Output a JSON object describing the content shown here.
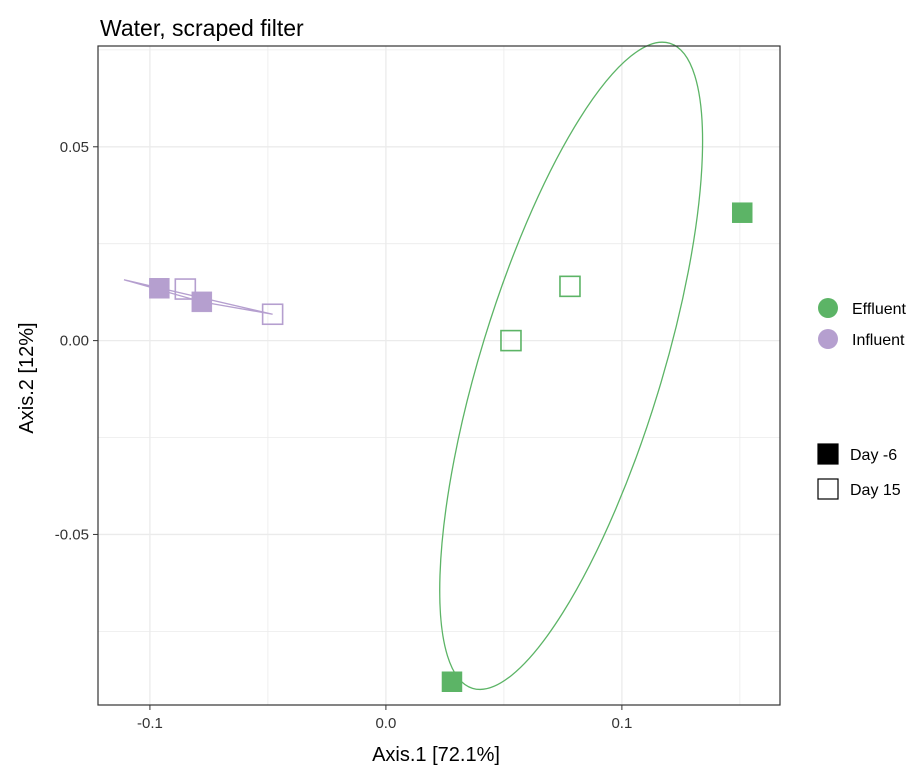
{
  "chart_data": {
    "type": "scatter",
    "title": "Water, scraped filter",
    "xlabel": "Axis.1   [72.1%]",
    "ylabel": "Axis.2   [12%]",
    "xlim": [
      -0.122,
      0.167
    ],
    "ylim": [
      -0.094,
      0.076
    ],
    "x_ticks": [
      -0.1,
      0.0,
      0.1
    ],
    "x_tick_labels": [
      "-0.1",
      "0.0",
      "0.1"
    ],
    "y_ticks": [
      -0.05,
      0.0,
      0.05
    ],
    "y_tick_labels": [
      "-0.05",
      "0.00",
      "0.05"
    ],
    "grid": true,
    "legend_position": "right",
    "color_legend": [
      {
        "label": "Effluent",
        "color": "#5cb466"
      },
      {
        "label": "Influent",
        "color": "#b59fcf"
      }
    ],
    "shape_legend": [
      {
        "label": "Day -6",
        "shape": "filled-square"
      },
      {
        "label": "Day 15",
        "shape": "open-square"
      }
    ],
    "series": [
      {
        "name": "Effluent",
        "color": "#5cb466",
        "points": [
          {
            "x": 0.151,
            "y": 0.033,
            "day": "Day -6"
          },
          {
            "x": 0.028,
            "y": -0.088,
            "day": "Day -6"
          },
          {
            "x": 0.078,
            "y": 0.014,
            "day": "Day 15"
          },
          {
            "x": 0.053,
            "y": 0.0,
            "day": "Day 15"
          }
        ],
        "ellipse": {
          "cx": 0.0785,
          "cy": -0.0065,
          "rx": 0.0385,
          "ry": 0.087,
          "angle_deg": 17
        }
      },
      {
        "name": "Influent",
        "color": "#b59fcf",
        "points": [
          {
            "x": -0.096,
            "y": 0.0135,
            "day": "Day -6"
          },
          {
            "x": -0.078,
            "y": 0.01,
            "day": "Day -6"
          },
          {
            "x": -0.085,
            "y": 0.0133,
            "day": "Day 15"
          },
          {
            "x": -0.048,
            "y": 0.0068,
            "day": "Day 15"
          }
        ],
        "hull": [
          [
            -0.111,
            0.0157
          ],
          [
            -0.048,
            0.0068
          ],
          [
            -0.078,
            0.01
          ]
        ]
      }
    ]
  }
}
